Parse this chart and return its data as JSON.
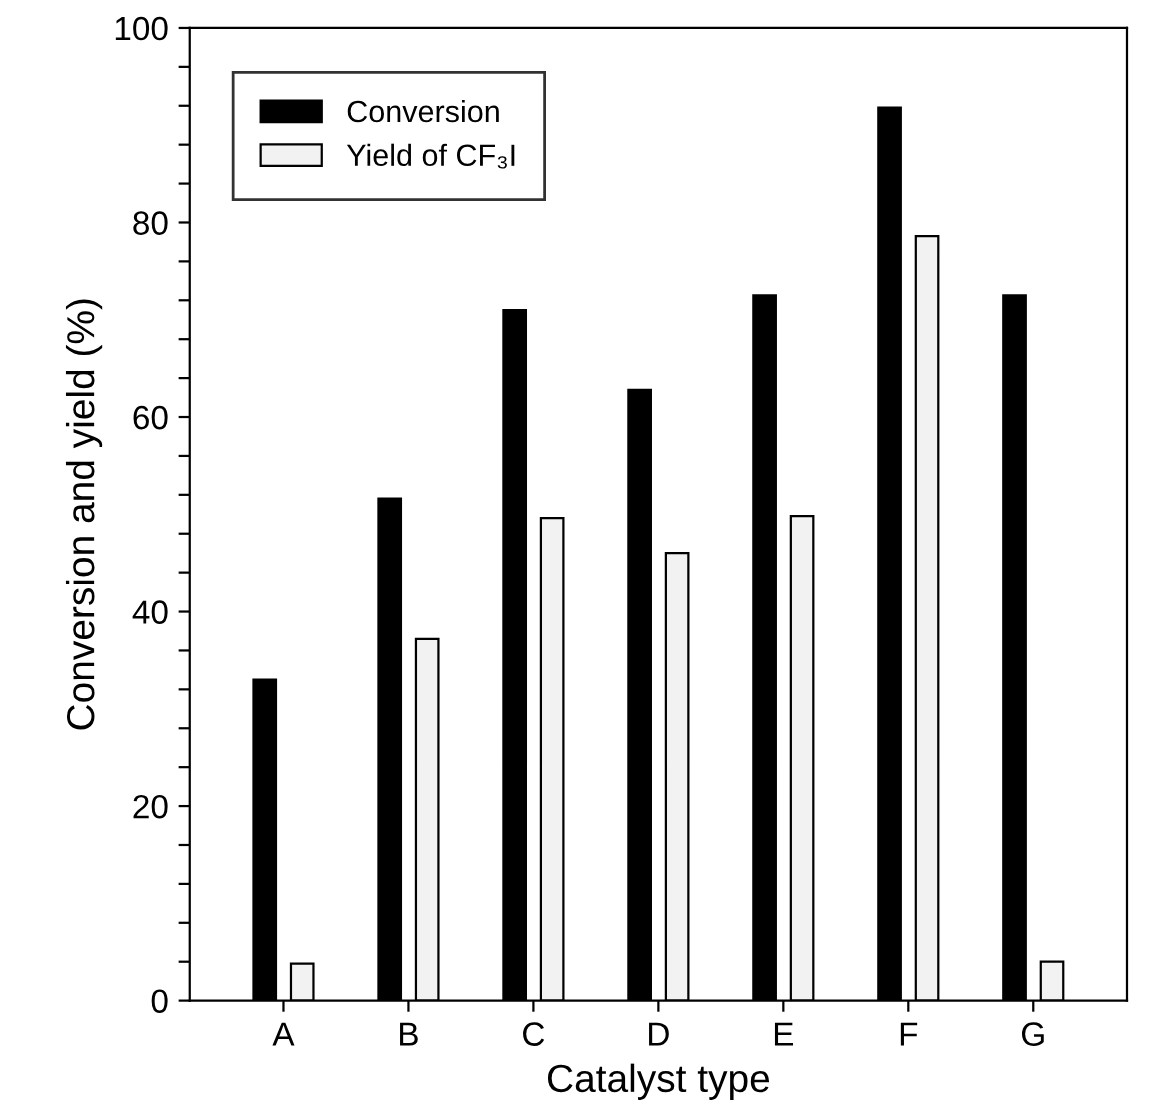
{
  "chart_data": {
    "type": "bar",
    "xlabel": "Catalyst type",
    "ylabel": "Conversion and yield (%)",
    "categories": [
      "A",
      "B",
      "C",
      "D",
      "E",
      "F",
      "G"
    ],
    "series": [
      {
        "name": "Conversion",
        "color": "#000000",
        "values": [
          33,
          51.6,
          71,
          62.8,
          72.5,
          91.8,
          72.5
        ]
      },
      {
        "name": "Yield of CF₃I",
        "color": "#f2f2f2",
        "values": [
          3.8,
          37.2,
          49.6,
          46,
          49.8,
          78.6,
          4
        ]
      }
    ],
    "ylim": [
      0,
      100
    ],
    "yticks": [
      0,
      {
        "value": 4,
        "label": null
      },
      {
        "value": 8,
        "label": null
      },
      {
        "value": 12,
        "label": null
      },
      {
        "value": 16,
        "label": null
      },
      20,
      {
        "value": 24,
        "label": null
      },
      {
        "value": 28,
        "label": null
      },
      {
        "value": 32,
        "label": null
      },
      {
        "value": 36,
        "label": null
      },
      40,
      {
        "value": 44,
        "label": null
      },
      {
        "value": 48,
        "label": null
      },
      {
        "value": 52,
        "label": null
      },
      {
        "value": 56,
        "label": null
      },
      60,
      {
        "value": 64,
        "label": null
      },
      {
        "value": 68,
        "label": null
      },
      {
        "value": 72,
        "label": null
      },
      {
        "value": 76,
        "label": null
      },
      80,
      {
        "value": 84,
        "label": null
      },
      {
        "value": 88,
        "label": null
      },
      {
        "value": 92,
        "label": null
      },
      {
        "value": 96,
        "label": null
      },
      100
    ],
    "grid": false,
    "legend": "top left"
  }
}
